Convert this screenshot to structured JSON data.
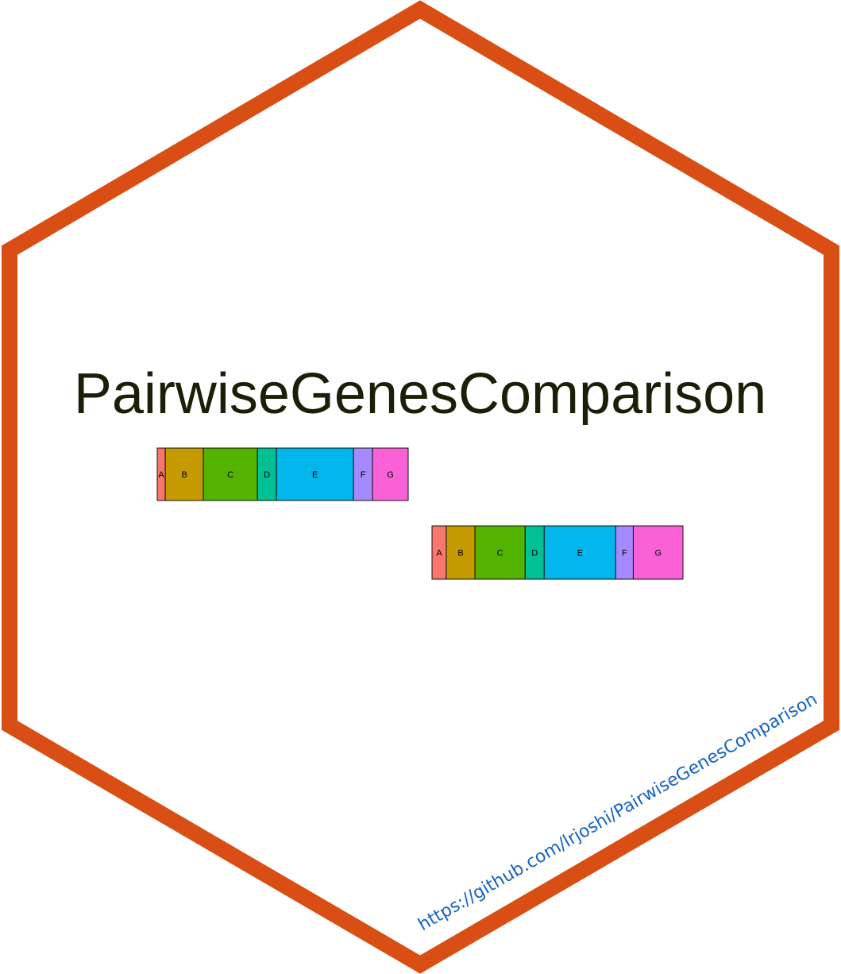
{
  "title": "PairwiseGenesComparison",
  "url": "https://github.com/lrjoshi/PairwiseGenesComparison",
  "colors": {
    "hex_border": "#D84E14",
    "title": "#1a1f07",
    "url": "#1565C0",
    "segment_stroke": "#111111"
  },
  "gene_tracks": [
    {
      "name": "upper-track",
      "segments": [
        {
          "label": "A",
          "color": "#F8766D",
          "fraction": 0.032
        },
        {
          "label": "B",
          "color": "#C49A00",
          "fraction": 0.152
        },
        {
          "label": "C",
          "color": "#53B400",
          "fraction": 0.215
        },
        {
          "label": "D",
          "color": "#00C094",
          "fraction": 0.076
        },
        {
          "label": "E",
          "color": "#00B6EB",
          "fraction": 0.307
        },
        {
          "label": "F",
          "color": "#A58AFF",
          "fraction": 0.076
        },
        {
          "label": "G",
          "color": "#FB61D7",
          "fraction": 0.142
        }
      ]
    },
    {
      "name": "lower-track",
      "segments": [
        {
          "label": "A",
          "color": "#F8766D",
          "fraction": 0.057
        },
        {
          "label": "B",
          "color": "#C49A00",
          "fraction": 0.114
        },
        {
          "label": "C",
          "color": "#53B400",
          "fraction": 0.2
        },
        {
          "label": "D",
          "color": "#00C094",
          "fraction": 0.076
        },
        {
          "label": "E",
          "color": "#00B6EB",
          "fraction": 0.285
        },
        {
          "label": "F",
          "color": "#A58AFF",
          "fraction": 0.07
        },
        {
          "label": "G",
          "color": "#FB61D7",
          "fraction": 0.198
        }
      ]
    }
  ]
}
